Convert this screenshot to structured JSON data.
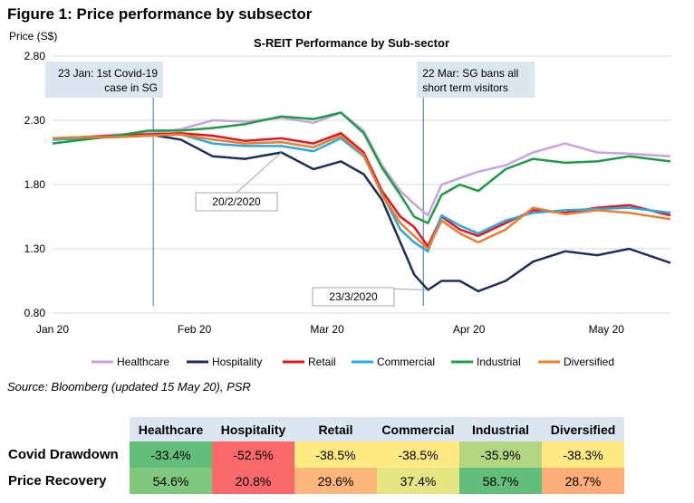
{
  "figure_title": "Figure 1: Price performance by subsector",
  "source_note": "Source: Bloomberg (updated 15 May 20), PSR",
  "colors": {
    "Healthcare": "#c8a2e0",
    "Hospitality": "#1f2d5a",
    "Retail": "#e8141c",
    "Commercial": "#2aa9e0",
    "Industrial": "#1f9a45",
    "Diversified": "#ea7d32"
  },
  "chart_data": {
    "type": "line",
    "title": "S-REIT Performance by Sub-sector",
    "ylabel": "Price (S$)",
    "xlabel": "",
    "ylim": [
      0.8,
      2.8
    ],
    "yticks": [
      "0.80",
      "1.30",
      "1.80",
      "2.30",
      "2.80"
    ],
    "ytick_values": [
      0.8,
      1.3,
      1.8,
      2.3,
      2.8
    ],
    "xlim": [
      "2020-01-01",
      "2020-05-15"
    ],
    "xticks": [
      {
        "date": "2020-01-01",
        "label": "Jan 20"
      },
      {
        "date": "2020-02-01",
        "label": "Feb 20"
      },
      {
        "date": "2020-03-01",
        "label": "Mar 20"
      },
      {
        "date": "2020-04-01",
        "label": "Apr 20"
      },
      {
        "date": "2020-05-01",
        "label": "May 20"
      }
    ],
    "legend_position": "bottom",
    "grid": "horizontal",
    "x": [
      "2020-01-01",
      "2020-01-08",
      "2020-01-15",
      "2020-01-22",
      "2020-01-29",
      "2020-02-05",
      "2020-02-12",
      "2020-02-20",
      "2020-02-27",
      "2020-03-04",
      "2020-03-09",
      "2020-03-13",
      "2020-03-17",
      "2020-03-20",
      "2020-03-23",
      "2020-03-26",
      "2020-03-30",
      "2020-04-03",
      "2020-04-09",
      "2020-04-15",
      "2020-04-22",
      "2020-04-29",
      "2020-05-06",
      "2020-05-15"
    ],
    "series": [
      {
        "name": "Healthcare",
        "values": [
          2.15,
          2.17,
          2.19,
          2.2,
          2.23,
          2.3,
          2.29,
          2.32,
          2.28,
          2.36,
          2.22,
          1.95,
          1.75,
          1.65,
          1.56,
          1.8,
          1.85,
          1.9,
          1.95,
          2.05,
          2.12,
          2.05,
          2.04,
          2.02
        ]
      },
      {
        "name": "Hospitality",
        "values": [
          2.15,
          2.16,
          2.18,
          2.19,
          2.15,
          2.02,
          2.0,
          2.05,
          1.92,
          1.98,
          1.88,
          1.68,
          1.35,
          1.1,
          0.98,
          1.05,
          1.05,
          0.97,
          1.05,
          1.2,
          1.28,
          1.25,
          1.3,
          1.19
        ]
      },
      {
        "name": "Retail",
        "values": [
          2.16,
          2.17,
          2.18,
          2.19,
          2.2,
          2.18,
          2.14,
          2.16,
          2.12,
          2.2,
          2.05,
          1.75,
          1.55,
          1.47,
          1.32,
          1.55,
          1.45,
          1.4,
          1.5,
          1.6,
          1.58,
          1.62,
          1.64,
          1.56
        ]
      },
      {
        "name": "Commercial",
        "values": [
          2.15,
          2.16,
          2.17,
          2.18,
          2.19,
          2.12,
          2.1,
          2.1,
          2.06,
          2.16,
          2.02,
          1.73,
          1.45,
          1.35,
          1.28,
          1.56,
          1.48,
          1.42,
          1.52,
          1.58,
          1.6,
          1.61,
          1.62,
          1.58
        ]
      },
      {
        "name": "Industrial",
        "values": [
          2.12,
          2.15,
          2.18,
          2.22,
          2.22,
          2.24,
          2.27,
          2.33,
          2.31,
          2.36,
          2.2,
          1.93,
          1.72,
          1.55,
          1.5,
          1.72,
          1.8,
          1.75,
          1.92,
          2.0,
          1.97,
          1.98,
          2.02,
          1.98
        ]
      },
      {
        "name": "Diversified",
        "values": [
          2.16,
          2.17,
          2.17,
          2.18,
          2.19,
          2.15,
          2.12,
          2.13,
          2.09,
          2.18,
          2.03,
          1.72,
          1.5,
          1.4,
          1.3,
          1.52,
          1.42,
          1.35,
          1.45,
          1.62,
          1.57,
          1.6,
          1.58,
          1.53
        ]
      }
    ],
    "annotations": {
      "event1_line1": "23 Jan: 1st Covid-19",
      "event1_line2": "case in SG",
      "event1_date": "2020-01-23",
      "event2_line1": "22 Mar: SG bans all",
      "event2_line2": "short term visitors",
      "event2_date": "2020-03-22",
      "callout1": "20/2/2020",
      "callout1_date": "2020-02-20",
      "callout1_value": 2.05,
      "callout2": "23/3/2020",
      "callout2_date": "2020-03-23",
      "callout2_value": 0.98
    }
  },
  "table": {
    "headers": [
      "",
      "Healthcare",
      "Hospitality",
      "Retail",
      "Commercial",
      "Industrial",
      "Diversified"
    ],
    "rows": [
      {
        "label": "Covid Drawdown",
        "cells": [
          {
            "text": "-33.4%",
            "color": "#63be7b"
          },
          {
            "text": "-52.5%",
            "color": "#f8696b"
          },
          {
            "text": "-38.5%",
            "color": "#fee983"
          },
          {
            "text": "-38.5%",
            "color": "#fee983"
          },
          {
            "text": "-35.9%",
            "color": "#b1d580"
          },
          {
            "text": "-38.3%",
            "color": "#fee983"
          }
        ]
      },
      {
        "label": "Price Recovery",
        "cells": [
          {
            "text": "54.6%",
            "color": "#7fc87e"
          },
          {
            "text": "20.8%",
            "color": "#f8696b"
          },
          {
            "text": "29.6%",
            "color": "#fcb57a"
          },
          {
            "text": "37.4%",
            "color": "#e6e583"
          },
          {
            "text": "58.7%",
            "color": "#63be7b"
          },
          {
            "text": "28.7%",
            "color": "#fcad78"
          }
        ]
      }
    ]
  }
}
